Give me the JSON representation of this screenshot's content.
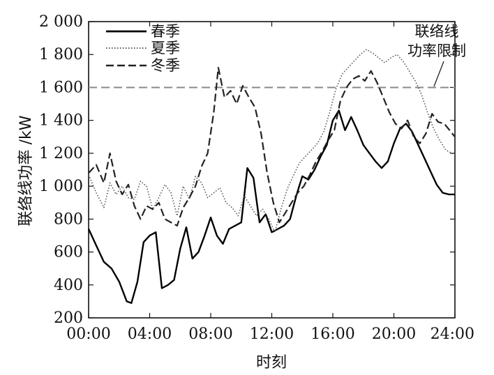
{
  "chart_data": {
    "type": "line",
    "title": "",
    "xlabel": "时刻",
    "ylabel": "联络线功率 /kW",
    "xlim": [
      0,
      24
    ],
    "ylim": [
      200,
      2000
    ],
    "x_ticks": [
      0,
      4,
      8,
      12,
      16,
      20,
      24
    ],
    "x_tick_labels": [
      "00:00",
      "04:00",
      "08:00",
      "12:00",
      "16:00",
      "20:00",
      "24:00"
    ],
    "y_ticks": [
      200,
      400,
      600,
      800,
      1000,
      1200,
      1400,
      1600,
      1800,
      2000
    ],
    "y_tick_labels": [
      "200",
      "400",
      "600",
      "800",
      "1 000",
      "1 200",
      "1 400",
      "1 600",
      "1 800",
      "2 000"
    ],
    "grid": false,
    "legend_position": "top-left",
    "annotation": {
      "line1": "联络线",
      "line2": "功率限制"
    },
    "limit": {
      "value": 1600,
      "color": "#888888"
    },
    "series": [
      {
        "name": "春季",
        "style": "solid",
        "color": "#000000",
        "x": [
          0,
          0.5,
          1,
          1.5,
          2,
          2.5,
          2.8,
          3.2,
          3.6,
          4,
          4.4,
          4.8,
          5.2,
          5.6,
          6,
          6.4,
          6.8,
          7.2,
          7.6,
          8,
          8.4,
          8.8,
          9.2,
          9.6,
          10,
          10.4,
          10.8,
          11.2,
          11.6,
          12,
          12.4,
          12.8,
          13.2,
          13.6,
          14,
          14.4,
          14.8,
          15.2,
          15.6,
          16,
          16.4,
          16.8,
          17.2,
          17.6,
          18,
          18.4,
          18.8,
          19.2,
          19.6,
          20,
          20.4,
          20.8,
          21.2,
          21.6,
          22,
          22.4,
          22.8,
          23.2,
          23.6,
          24
        ],
        "y": [
          740,
          640,
          540,
          500,
          420,
          300,
          290,
          420,
          660,
          700,
          720,
          380,
          400,
          430,
          620,
          750,
          560,
          600,
          700,
          810,
          700,
          650,
          740,
          760,
          780,
          1110,
          1050,
          780,
          830,
          720,
          740,
          760,
          800,
          940,
          1060,
          1040,
          1100,
          1180,
          1250,
          1400,
          1460,
          1340,
          1420,
          1340,
          1250,
          1200,
          1150,
          1110,
          1150,
          1260,
          1350,
          1380,
          1330,
          1250,
          1170,
          1090,
          1010,
          960,
          950,
          950
        ]
      },
      {
        "name": "夏季",
        "style": "dotted",
        "color": "#555555",
        "x": [
          0,
          0.5,
          1,
          1.4,
          1.8,
          2.2,
          2.6,
          3,
          3.4,
          3.8,
          4.2,
          4.6,
          5,
          5.4,
          5.8,
          6.2,
          6.6,
          7,
          7.4,
          7.8,
          8.2,
          8.6,
          9,
          9.4,
          9.8,
          10.2,
          10.6,
          11,
          11.4,
          11.8,
          12.2,
          12.6,
          13,
          13.4,
          13.8,
          14.2,
          14.6,
          15,
          15.4,
          15.8,
          16.2,
          16.6,
          17,
          17.4,
          17.8,
          18.2,
          18.6,
          19,
          19.4,
          19.8,
          20.2,
          20.6,
          21,
          21.4,
          21.8,
          22.2,
          22.6,
          23,
          23.4,
          24
        ],
        "y": [
          1070,
          960,
          870,
          1020,
          950,
          1000,
          930,
          920,
          1030,
          1000,
          860,
          930,
          1010,
          960,
          820,
          1000,
          920,
          1060,
          1020,
          930,
          960,
          990,
          900,
          870,
          820,
          940,
          880,
          820,
          860,
          800,
          720,
          860,
          980,
          1060,
          1140,
          1180,
          1220,
          1260,
          1330,
          1450,
          1590,
          1680,
          1720,
          1760,
          1800,
          1830,
          1810,
          1780,
          1750,
          1780,
          1800,
          1760,
          1700,
          1640,
          1560,
          1450,
          1350,
          1280,
          1220,
          1190
        ]
      },
      {
        "name": "冬季",
        "style": "dashed",
        "color": "#222222",
        "x": [
          0,
          0.5,
          1,
          1.4,
          1.8,
          2.2,
          2.6,
          3,
          3.4,
          3.8,
          4.2,
          4.6,
          5,
          5.4,
          5.8,
          6.2,
          6.6,
          7,
          7.4,
          7.8,
          8.2,
          8.5,
          8.9,
          9.3,
          9.7,
          10.1,
          10.5,
          10.9,
          11.3,
          11.7,
          12.1,
          12.5,
          12.9,
          13.3,
          13.7,
          14.1,
          14.5,
          14.9,
          15.3,
          15.7,
          16.1,
          16.5,
          16.9,
          17.3,
          17.7,
          18.1,
          18.5,
          18.9,
          19.3,
          19.7,
          20.1,
          20.5,
          20.9,
          21.3,
          21.7,
          22.1,
          22.5,
          22.9,
          23.3,
          24
        ],
        "y": [
          1080,
          1130,
          1020,
          1200,
          1030,
          950,
          1010,
          880,
          800,
          880,
          860,
          900,
          800,
          780,
          760,
          870,
          930,
          1000,
          1120,
          1200,
          1450,
          1720,
          1540,
          1580,
          1500,
          1610,
          1540,
          1480,
          1320,
          1080,
          900,
          780,
          840,
          900,
          960,
          1000,
          1070,
          1150,
          1210,
          1280,
          1340,
          1520,
          1600,
          1650,
          1670,
          1640,
          1700,
          1630,
          1540,
          1450,
          1380,
          1350,
          1400,
          1300,
          1260,
          1320,
          1440,
          1390,
          1380,
          1300
        ]
      }
    ]
  }
}
